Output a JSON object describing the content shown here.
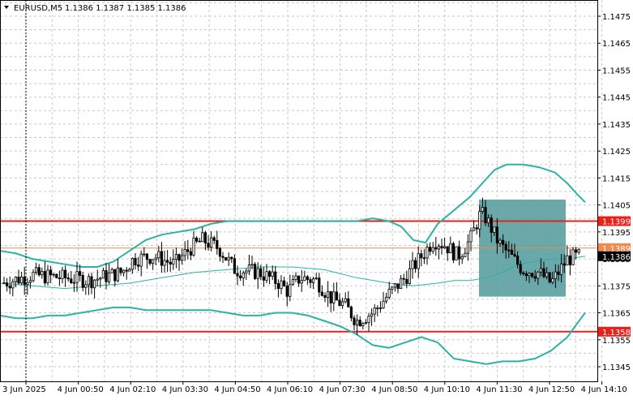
{
  "header": {
    "symbol": "EURUSD,M5",
    "ohlc": "1.1386 1.1387 1.1385 1.1386"
  },
  "colors": {
    "grid": "#c8c8c8",
    "band": "#2ab3a6",
    "level": "#e8221a",
    "price_line": "#f08a50",
    "zone": "#5a9ea0",
    "bull": "#000000",
    "bear": "#000000"
  },
  "chart_data": {
    "type": "candlestick",
    "ylim": [
      1.134,
      1.1482
    ],
    "y_ticks": [
      "1.1475",
      "1.1465",
      "1.1455",
      "1.1445",
      "1.1435",
      "1.1425",
      "1.1415",
      "1.1405",
      "1.1395",
      "1.1385",
      "1.1375",
      "1.1365",
      "1.1355",
      "1.1345"
    ],
    "x_ticks": [
      "3 Jun 2025",
      "4 Jun 00:50",
      "4 Jun 02:10",
      "4 Jun 03:30",
      "4 Jun 04:50",
      "4 Jun 06:10",
      "4 Jun 07:30",
      "4 Jun 08:50",
      "4 Jun 10:10",
      "4 Jun 11:30",
      "4 Jun 12:50",
      "4 Jun 14:10"
    ],
    "levels": [
      {
        "label": "1.1399",
        "value": 1.1399,
        "color": "#e8221a"
      },
      {
        "label": "1.1358",
        "value": 1.1358,
        "color": "#e8221a"
      }
    ],
    "price_line": {
      "label": "1.1389",
      "value": 1.1389,
      "color": "#f08a50"
    },
    "current_price": {
      "label": "1.1386",
      "value": 1.1386
    },
    "bollinger": {
      "upper": [
        [
          0,
          1.1388
        ],
        [
          20,
          1.1387
        ],
        [
          40,
          1.1385
        ],
        [
          60,
          1.1384
        ],
        [
          80,
          1.1383
        ],
        [
          100,
          1.1382
        ],
        [
          120,
          1.1382
        ],
        [
          140,
          1.1384
        ],
        [
          160,
          1.1388
        ],
        [
          180,
          1.1392
        ],
        [
          200,
          1.1394
        ],
        [
          220,
          1.1395
        ],
        [
          240,
          1.1396
        ],
        [
          260,
          1.1398
        ],
        [
          280,
          1.1399
        ],
        [
          300,
          1.1399
        ],
        [
          320,
          1.1399
        ],
        [
          340,
          1.1399
        ],
        [
          360,
          1.1399
        ],
        [
          380,
          1.1399
        ],
        [
          400,
          1.1399
        ],
        [
          420,
          1.1399
        ],
        [
          440,
          1.1399
        ],
        [
          460,
          1.14
        ],
        [
          480,
          1.1399
        ],
        [
          495,
          1.1397
        ],
        [
          510,
          1.1392
        ],
        [
          525,
          1.1391
        ],
        [
          540,
          1.1398
        ],
        [
          560,
          1.1403
        ],
        [
          580,
          1.1408
        ],
        [
          595,
          1.1413
        ],
        [
          610,
          1.1418
        ],
        [
          625,
          1.142
        ],
        [
          645,
          1.142
        ],
        [
          665,
          1.1419
        ],
        [
          685,
          1.1417
        ],
        [
          700,
          1.1413
        ],
        [
          712,
          1.1409
        ],
        [
          722,
          1.1406
        ]
      ],
      "middle": [
        [
          0,
          1.1376
        ],
        [
          40,
          1.1375
        ],
        [
          80,
          1.1374
        ],
        [
          120,
          1.1375
        ],
        [
          160,
          1.1376
        ],
        [
          200,
          1.1378
        ],
        [
          240,
          1.138
        ],
        [
          280,
          1.1381
        ],
        [
          320,
          1.1382
        ],
        [
          360,
          1.1382
        ],
        [
          400,
          1.1381
        ],
        [
          440,
          1.1378
        ],
        [
          480,
          1.1376
        ],
        [
          510,
          1.1375
        ],
        [
          540,
          1.1376
        ],
        [
          560,
          1.1377
        ],
        [
          580,
          1.1377
        ],
        [
          600,
          1.1378
        ],
        [
          620,
          1.138
        ],
        [
          640,
          1.1383
        ],
        [
          660,
          1.1384
        ],
        [
          680,
          1.1385
        ],
        [
          700,
          1.1385
        ],
        [
          722,
          1.1386
        ]
      ],
      "lower": [
        [
          0,
          1.1364
        ],
        [
          20,
          1.1363
        ],
        [
          40,
          1.1363
        ],
        [
          60,
          1.1364
        ],
        [
          80,
          1.1364
        ],
        [
          100,
          1.1365
        ],
        [
          120,
          1.1366
        ],
        [
          140,
          1.1367
        ],
        [
          160,
          1.1367
        ],
        [
          180,
          1.1366
        ],
        [
          200,
          1.1366
        ],
        [
          220,
          1.1366
        ],
        [
          240,
          1.1366
        ],
        [
          260,
          1.1366
        ],
        [
          280,
          1.1365
        ],
        [
          300,
          1.1364
        ],
        [
          320,
          1.1364
        ],
        [
          340,
          1.1365
        ],
        [
          360,
          1.1365
        ],
        [
          380,
          1.1364
        ],
        [
          400,
          1.1362
        ],
        [
          420,
          1.136
        ],
        [
          440,
          1.1357
        ],
        [
          460,
          1.1353
        ],
        [
          480,
          1.1352
        ],
        [
          500,
          1.1354
        ],
        [
          520,
          1.1356
        ],
        [
          540,
          1.1354
        ],
        [
          560,
          1.1348
        ],
        [
          580,
          1.1347
        ],
        [
          600,
          1.1346
        ],
        [
          620,
          1.1347
        ],
        [
          640,
          1.1347
        ],
        [
          660,
          1.1348
        ],
        [
          680,
          1.1351
        ],
        [
          700,
          1.1356
        ],
        [
          712,
          1.1361
        ],
        [
          722,
          1.1365
        ]
      ]
    },
    "trade_zone": {
      "x_from": 591,
      "x_to": 698,
      "y_from": 1.1407,
      "y_to": 1.1371
    },
    "cursor_x": 32
  }
}
